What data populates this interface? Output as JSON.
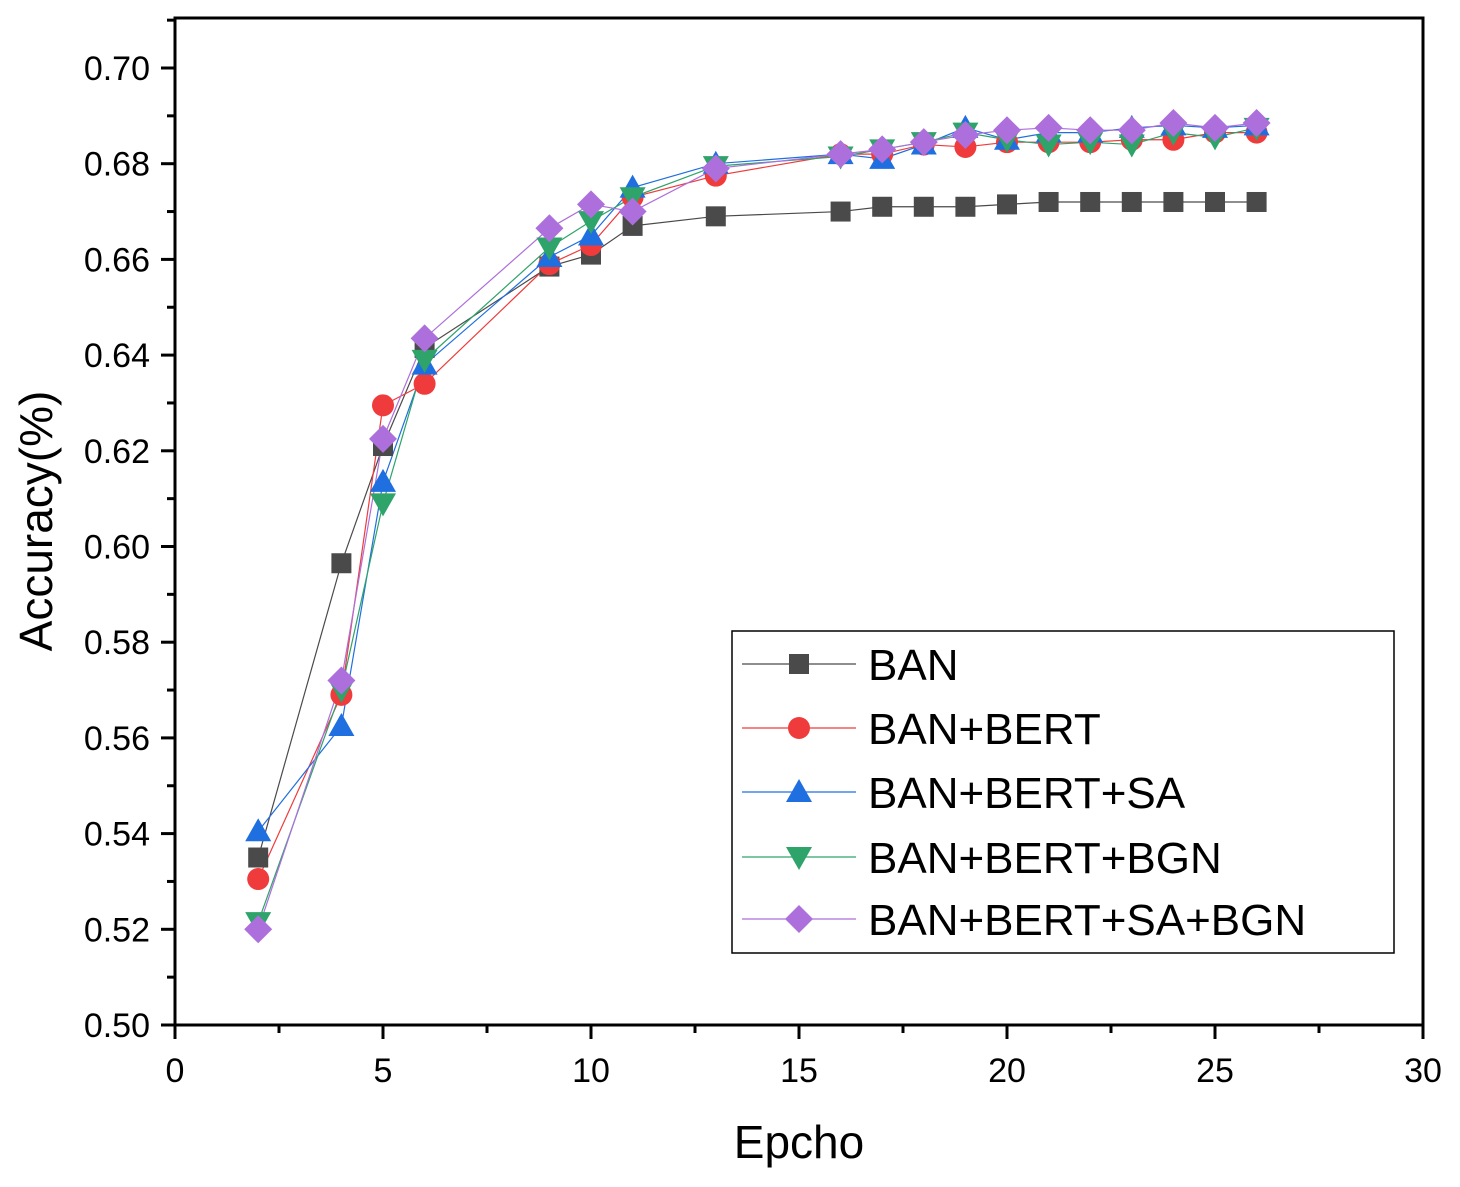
{
  "chart_data": {
    "type": "line",
    "title": "",
    "xlabel": "Epcho",
    "ylabel": "Accuracy(%)",
    "xlim": [
      0,
      30
    ],
    "ylim": [
      0.5,
      0.7
    ],
    "xticks": [
      0,
      5,
      10,
      15,
      20,
      25,
      30
    ],
    "xtick_labels": [
      "0",
      "5",
      "10",
      "15",
      "20",
      "25",
      "30"
    ],
    "yticks": [
      0.5,
      0.52,
      0.54,
      0.56,
      0.58,
      0.6,
      0.62,
      0.64,
      0.66,
      0.68,
      0.7
    ],
    "ytick_labels": [
      "0.50",
      "0.52",
      "0.54",
      "0.56",
      "0.58",
      "0.60",
      "0.62",
      "0.64",
      "0.66",
      "0.68",
      "0.70"
    ],
    "grid": false,
    "legend_position": "bottom-right",
    "series": [
      {
        "name": "BAN",
        "color": "#4a4a4a",
        "marker": "square",
        "x": [
          2,
          4,
          5,
          6,
          9,
          10,
          11,
          13,
          16,
          17,
          18,
          19,
          20,
          21,
          22,
          23,
          24,
          25,
          26
        ],
        "values": [
          0.535,
          0.5965,
          0.621,
          0.6415,
          0.6585,
          0.661,
          0.667,
          0.669,
          0.67,
          0.671,
          0.671,
          0.671,
          0.6715,
          0.672,
          0.672,
          0.672,
          0.672,
          0.672,
          0.672
        ]
      },
      {
        "name": "BAN+BERT",
        "color": "#ef3b3b",
        "marker": "circle",
        "x": [
          2,
          4,
          5,
          6,
          9,
          10,
          11,
          13,
          16,
          17,
          18,
          19,
          20,
          21,
          22,
          23,
          24,
          25,
          26
        ],
        "values": [
          0.5305,
          0.569,
          0.6295,
          0.634,
          0.659,
          0.663,
          0.673,
          0.6775,
          0.682,
          0.682,
          0.684,
          0.6835,
          0.6845,
          0.6845,
          0.6845,
          0.685,
          0.685,
          0.6865,
          0.6865
        ]
      },
      {
        "name": "BAN+BERT+SA",
        "color": "#1f6fe0",
        "marker": "triangle-up",
        "x": [
          2,
          4,
          5,
          6,
          9,
          10,
          11,
          13,
          16,
          17,
          18,
          19,
          20,
          21,
          22,
          23,
          24,
          25,
          26
        ],
        "values": [
          0.5405,
          0.5625,
          0.6135,
          0.638,
          0.6605,
          0.665,
          0.675,
          0.68,
          0.682,
          0.681,
          0.684,
          0.6875,
          0.685,
          0.6865,
          0.6865,
          0.6875,
          0.688,
          0.6875,
          0.688
        ]
      },
      {
        "name": "BAN+BERT+BGN",
        "color": "#2ea36a",
        "marker": "triangle-down",
        "x": [
          2,
          4,
          5,
          6,
          9,
          10,
          11,
          13,
          16,
          17,
          18,
          19,
          20,
          21,
          22,
          23,
          24,
          25,
          26
        ],
        "values": [
          0.5215,
          0.57,
          0.609,
          0.639,
          0.6625,
          0.668,
          0.673,
          0.6795,
          0.6815,
          0.683,
          0.6845,
          0.6865,
          0.685,
          0.684,
          0.6845,
          0.684,
          0.6865,
          0.6855,
          0.6875
        ]
      },
      {
        "name": "BAN+BERT+SA+BGN",
        "color": "#ad6fdc",
        "marker": "diamond",
        "x": [
          2,
          4,
          5,
          6,
          9,
          10,
          11,
          13,
          16,
          17,
          18,
          19,
          20,
          21,
          22,
          23,
          24,
          25,
          26
        ],
        "values": [
          0.52,
          0.572,
          0.6225,
          0.6435,
          0.6665,
          0.6715,
          0.67,
          0.679,
          0.682,
          0.683,
          0.6845,
          0.686,
          0.687,
          0.6875,
          0.687,
          0.687,
          0.6885,
          0.6875,
          0.6885
        ]
      }
    ]
  }
}
